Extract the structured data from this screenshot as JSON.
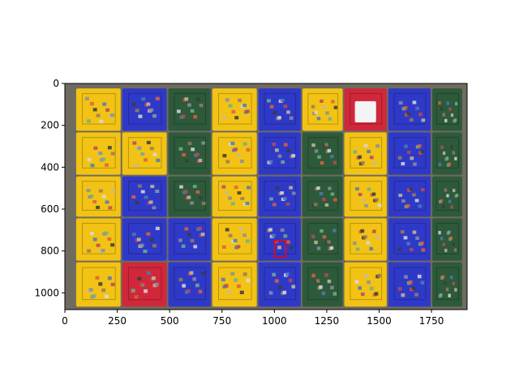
{
  "figure": {
    "background": "#ffffff"
  },
  "image": {
    "description_colors": {
      "yellow": "#f2c314",
      "blue": "#2f39c7",
      "green": "#2d5a3a",
      "red": "#d0283a",
      "border_bg": "#6f6b60"
    },
    "highlight_color": "#ff0000"
  },
  "axes": {
    "x_ticks": [
      "0",
      "250",
      "500",
      "750",
      "1000",
      "1250",
      "1500",
      "1750"
    ],
    "y_ticks": [
      "0",
      "200",
      "400",
      "600",
      "800",
      "1000"
    ],
    "x_range": [
      0,
      1920
    ],
    "y_range": [
      0,
      1080
    ]
  }
}
